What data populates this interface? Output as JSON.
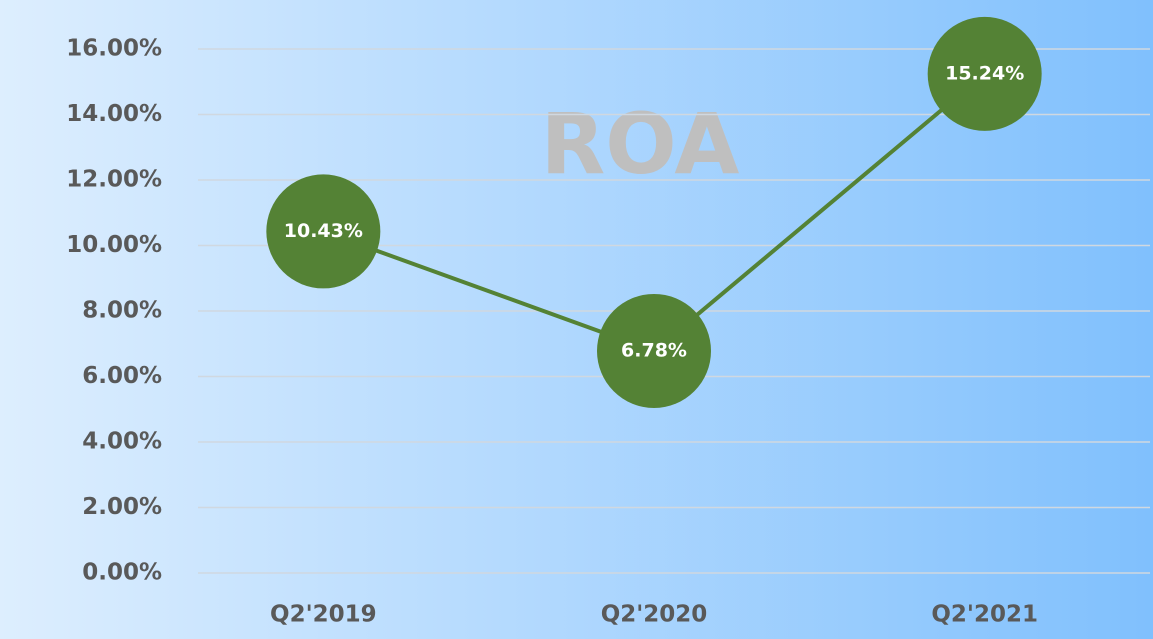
{
  "chart_data": {
    "type": "line",
    "title": "ROA",
    "categories": [
      "Q2'2019",
      "Q2'2020",
      "Q2'2021"
    ],
    "values": [
      10.43,
      6.78,
      15.24
    ],
    "value_labels": [
      "10.43%",
      "6.78%",
      "15.24%"
    ],
    "color": "#548235",
    "ylim": [
      0,
      16
    ],
    "yticks": [
      {
        "value": 0,
        "label": "0.00%"
      },
      {
        "value": 2,
        "label": "2.00%"
      },
      {
        "value": 4,
        "label": "4.00%"
      },
      {
        "value": 6,
        "label": "6.00%"
      },
      {
        "value": 8,
        "label": "8.00%"
      },
      {
        "value": 10,
        "label": "10.00%"
      },
      {
        "value": 12,
        "label": "12.00%"
      },
      {
        "value": 14,
        "label": "14.00%"
      },
      {
        "value": 16,
        "label": "16.00%"
      }
    ],
    "grid": true
  }
}
